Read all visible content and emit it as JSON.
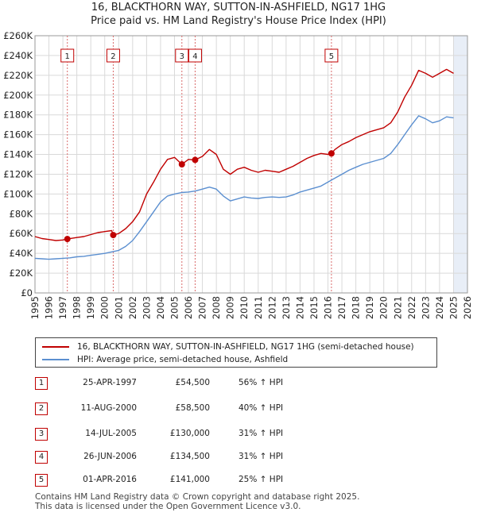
{
  "title_line1": "16, BLACKTHORN WAY, SUTTON-IN-ASHFIELD, NG17 1HG",
  "title_line2": "Price paid vs. HM Land Registry's House Price Index (HPI)",
  "legend": {
    "property": "16, BLACKTHORN WAY, SUTTON-IN-ASHFIELD, NG17 1HG (semi-detached house)",
    "hpi": "HPI: Average price, semi-detached house, Ashfield"
  },
  "colors": {
    "property": "#c00000",
    "hpi": "#5b8fd0",
    "grid": "#d9d9d9",
    "shade": "#e8eef7",
    "marker_line": "#d96b6b"
  },
  "transactions": [
    {
      "n": "1",
      "date": "25-APR-1997",
      "price": "£54,500",
      "hpi": "56% ↑ HPI"
    },
    {
      "n": "2",
      "date": "11-AUG-2000",
      "price": "£58,500",
      "hpi": "40% ↑ HPI"
    },
    {
      "n": "3",
      "date": "14-JUL-2005",
      "price": "£130,000",
      "hpi": "31% ↑ HPI"
    },
    {
      "n": "4",
      "date": "26-JUN-2006",
      "price": "£134,500",
      "hpi": "31% ↑ HPI"
    },
    {
      "n": "5",
      "date": "01-APR-2016",
      "price": "£141,000",
      "hpi": "25% ↑ HPI"
    }
  ],
  "footer_line1": "Contains HM Land Registry data © Crown copyright and database right 2025.",
  "footer_line2": "This data is licensed under the Open Government Licence v3.0.",
  "chart_data": {
    "type": "line",
    "xlim": [
      1995,
      2026
    ],
    "ylim": [
      0,
      260000
    ],
    "x_ticks": [
      "1995",
      "1996",
      "1997",
      "1998",
      "1999",
      "2000",
      "2001",
      "2002",
      "2003",
      "2004",
      "2005",
      "2006",
      "2007",
      "2008",
      "2009",
      "2010",
      "2011",
      "2012",
      "2013",
      "2014",
      "2015",
      "2016",
      "2017",
      "2018",
      "2019",
      "2020",
      "2021",
      "2022",
      "2023",
      "2024",
      "2025",
      "2026"
    ],
    "y_ticks": [
      {
        "v": 0,
        "label": "£0"
      },
      {
        "v": 20000,
        "label": "£20K"
      },
      {
        "v": 40000,
        "label": "£40K"
      },
      {
        "v": 60000,
        "label": "£60K"
      },
      {
        "v": 80000,
        "label": "£80K"
      },
      {
        "v": 100000,
        "label": "£100K"
      },
      {
        "v": 120000,
        "label": "£120K"
      },
      {
        "v": 140000,
        "label": "£140K"
      },
      {
        "v": 160000,
        "label": "£160K"
      },
      {
        "v": 180000,
        "label": "£180K"
      },
      {
        "v": 200000,
        "label": "£200K"
      },
      {
        "v": 220000,
        "label": "£220K"
      },
      {
        "v": 240000,
        "label": "£240K"
      },
      {
        "v": 260000,
        "label": "£260K"
      }
    ],
    "grid": true,
    "future_shade_from": 2025.0,
    "sales": [
      {
        "n": "1",
        "x": 1997.32,
        "y": 54500
      },
      {
        "n": "2",
        "x": 2000.61,
        "y": 58500
      },
      {
        "n": "3",
        "x": 2005.53,
        "y": 130000
      },
      {
        "n": "4",
        "x": 2006.48,
        "y": 134500
      },
      {
        "n": "5",
        "x": 2016.25,
        "y": 141000
      }
    ],
    "series": [
      {
        "name": "16, BLACKTHORN WAY, SUTTON-IN-ASHFIELD, NG17 1HG (semi-detached house)",
        "x": [
          1995.0,
          1995.5,
          1996.0,
          1996.5,
          1997.0,
          1997.32,
          1998.0,
          1998.5,
          1999.0,
          1999.5,
          2000.0,
          2000.5,
          2000.61,
          2001.0,
          2001.5,
          2002.0,
          2002.5,
          2003.0,
          2003.5,
          2004.0,
          2004.5,
          2005.0,
          2005.53,
          2006.0,
          2006.48,
          2007.0,
          2007.5,
          2008.0,
          2008.5,
          2009.0,
          2009.5,
          2010.0,
          2010.5,
          2011.0,
          2011.5,
          2012.0,
          2012.5,
          2013.0,
          2013.5,
          2014.0,
          2014.5,
          2015.0,
          2015.5,
          2016.0,
          2016.25,
          2016.5,
          2017.0,
          2017.5,
          2018.0,
          2018.5,
          2019.0,
          2019.5,
          2020.0,
          2020.5,
          2021.0,
          2021.5,
          2022.0,
          2022.5,
          2023.0,
          2023.5,
          2024.0,
          2024.5,
          2025.0
        ],
        "y": [
          57000,
          55000,
          54000,
          53000,
          53500,
          54500,
          56000,
          57000,
          59000,
          61000,
          62000,
          63000,
          58500,
          60000,
          65000,
          72000,
          82000,
          100000,
          112000,
          125000,
          135000,
          137000,
          130000,
          135000,
          134500,
          138000,
          145000,
          140000,
          125000,
          120000,
          125000,
          127000,
          124000,
          122000,
          124000,
          123000,
          122000,
          125000,
          128000,
          132000,
          136000,
          139000,
          141000,
          140000,
          141000,
          145000,
          150000,
          153000,
          157000,
          160000,
          163000,
          165000,
          167000,
          172000,
          183000,
          198000,
          210000,
          225000,
          222000,
          218000,
          222000,
          226000,
          222000
        ]
      },
      {
        "name": "HPI: Average price, semi-detached house, Ashfield",
        "x": [
          1995.0,
          1995.5,
          1996.0,
          1996.5,
          1997.0,
          1997.5,
          1998.0,
          1998.5,
          1999.0,
          1999.5,
          2000.0,
          2000.5,
          2001.0,
          2001.5,
          2002.0,
          2002.5,
          2003.0,
          2003.5,
          2004.0,
          2004.5,
          2005.0,
          2005.5,
          2006.0,
          2006.5,
          2007.0,
          2007.5,
          2008.0,
          2008.5,
          2009.0,
          2009.5,
          2010.0,
          2010.5,
          2011.0,
          2011.5,
          2012.0,
          2012.5,
          2013.0,
          2013.5,
          2014.0,
          2014.5,
          2015.0,
          2015.5,
          2016.0,
          2016.5,
          2017.0,
          2017.5,
          2018.0,
          2018.5,
          2019.0,
          2019.5,
          2020.0,
          2020.5,
          2021.0,
          2021.5,
          2022.0,
          2022.5,
          2023.0,
          2023.5,
          2024.0,
          2024.5,
          2025.0
        ],
        "y": [
          35000,
          34500,
          34000,
          34500,
          35000,
          35500,
          36500,
          37000,
          38000,
          39000,
          40000,
          41500,
          43000,
          47000,
          53000,
          62000,
          72000,
          82000,
          92000,
          98000,
          100000,
          101500,
          102000,
          103000,
          105000,
          107000,
          105000,
          98000,
          93000,
          95000,
          97000,
          96000,
          95500,
          96500,
          97000,
          96500,
          97000,
          99000,
          102000,
          104000,
          106000,
          108000,
          112000,
          116000,
          120000,
          124000,
          127000,
          130000,
          132000,
          134000,
          136000,
          141000,
          150000,
          160000,
          170000,
          179000,
          176000,
          172000,
          174000,
          178000,
          177000
        ]
      }
    ]
  }
}
